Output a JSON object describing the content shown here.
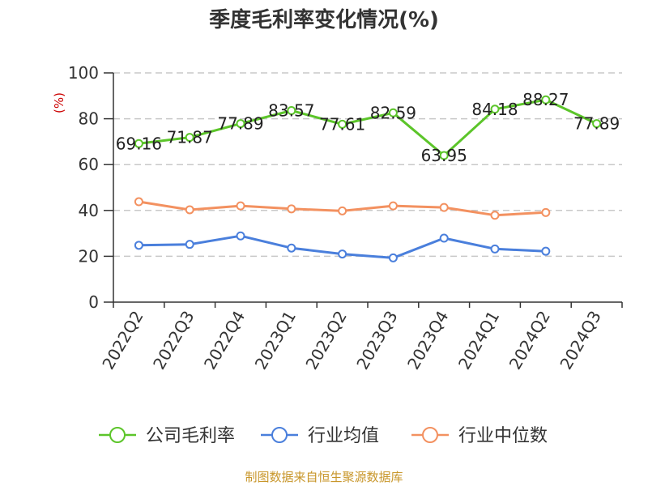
{
  "chart_data": {
    "type": "line",
    "title": "季度毛利率变化情况(%)",
    "ylabel": "(%)",
    "xlabel": "",
    "ylim": [
      0,
      100
    ],
    "yticks": [
      0,
      20,
      40,
      60,
      80,
      100
    ],
    "grid": true,
    "legend_position": "bottom",
    "categories": [
      "2022Q2",
      "2022Q3",
      "2022Q4",
      "2023Q1",
      "2023Q2",
      "2023Q3",
      "2023Q4",
      "2024Q1",
      "2024Q2",
      "2024Q3"
    ],
    "series": [
      {
        "name": "公司毛利率",
        "color": "#5cc52a",
        "values": [
          69.16,
          71.87,
          77.89,
          83.57,
          77.61,
          82.59,
          63.95,
          84.18,
          88.27,
          77.89
        ],
        "labels": [
          "69.16",
          "71.87",
          "77.89",
          "83.57",
          "77.61",
          "82.59",
          "63.95",
          "84.18",
          "88.27",
          "77.89"
        ]
      },
      {
        "name": "行业均值",
        "color": "#4a7fdc",
        "values": [
          24.8,
          25.2,
          28.9,
          23.6,
          21.0,
          19.3,
          27.9,
          23.2,
          22.2,
          null
        ]
      },
      {
        "name": "行业中位数",
        "color": "#f39160",
        "values": [
          43.8,
          40.3,
          42.0,
          40.7,
          39.8,
          42.0,
          41.3,
          37.9,
          39.1,
          null
        ]
      }
    ],
    "source": "制图数据来自恒生聚源数据库"
  }
}
